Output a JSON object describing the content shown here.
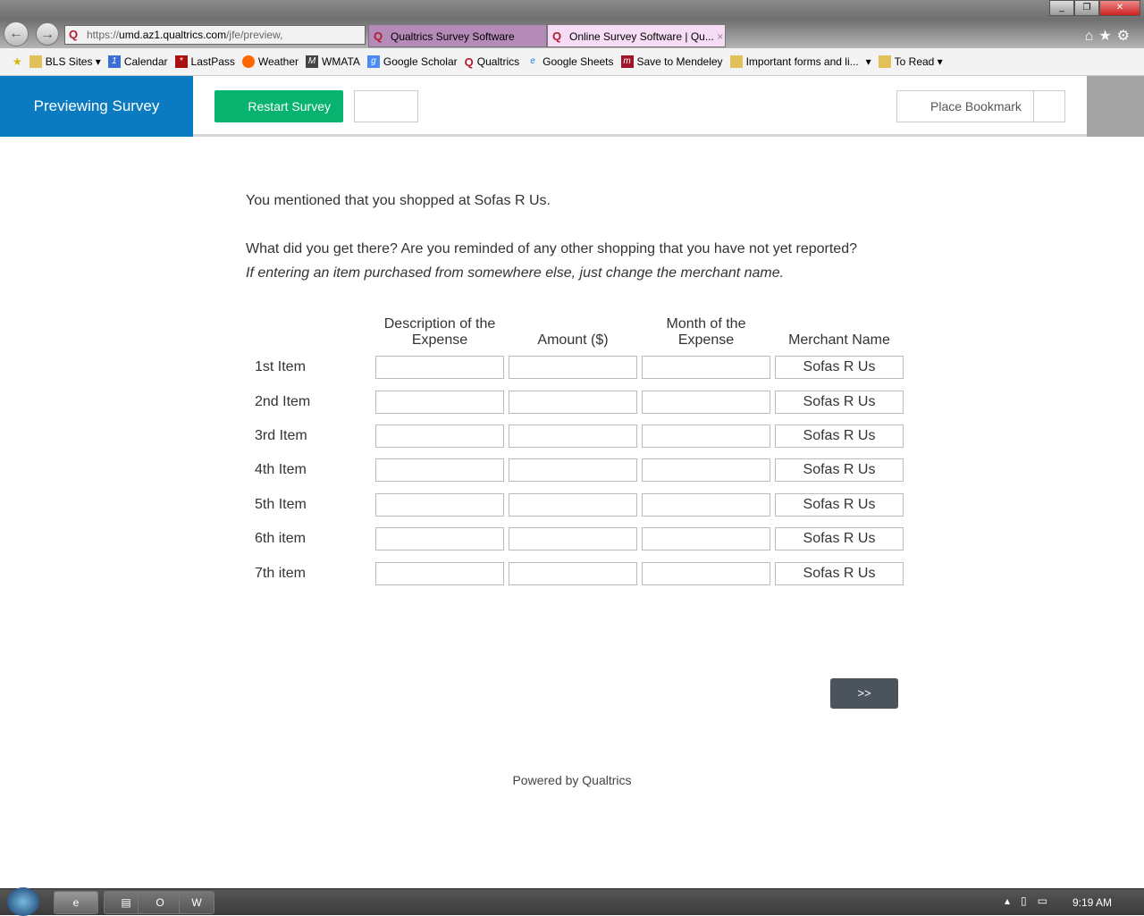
{
  "browser": {
    "url_prefix": "https://",
    "url_domain": "umd.az1.qualtrics.com",
    "url_path": "/jfe/preview,",
    "tabs": [
      {
        "label": "Qualtrics Survey Software"
      },
      {
        "label": "Online Survey Software | Qu..."
      }
    ],
    "tab_close": "×",
    "bookmarks": [
      {
        "label": "BLS Sites ▾",
        "icon": "folder-icon"
      },
      {
        "label": "Calendar",
        "icon": "calendar-icon"
      },
      {
        "label": "LastPass",
        "icon": "lastpass-icon"
      },
      {
        "label": "Weather",
        "icon": "weather-icon"
      },
      {
        "label": "WMATA",
        "icon": "wmata-icon"
      },
      {
        "label": "Google Scholar",
        "icon": "scholar-icon"
      },
      {
        "label": "Qualtrics",
        "icon": "qualtrics-icon"
      },
      {
        "label": "Google Sheets",
        "icon": "ie-page-icon"
      },
      {
        "label": "Save to Mendeley",
        "icon": "mendeley-icon"
      },
      {
        "label": "Important forms and li...",
        "icon": "folder-icon"
      },
      {
        "label": "▾",
        "icon": ""
      },
      {
        "label": "To Read ▾",
        "icon": "folder-icon"
      }
    ]
  },
  "header": {
    "preview": "Previewing Survey",
    "restart": "Restart Survey",
    "bookmark": "Place Bookmark"
  },
  "survey": {
    "intro": "You mentioned that you shopped at Sofas R Us.",
    "question": "What did you get there? Are you reminded of any other shopping that you have not yet reported?",
    "instruction": "If entering an item purchased from somewhere else, just change the merchant name.",
    "columns": [
      "Description of the Expense",
      "Amount ($)",
      "Month of the Expense",
      "Merchant Name"
    ],
    "rows": [
      {
        "label": "1st Item",
        "merchant": "Sofas R Us"
      },
      {
        "label": "2nd Item",
        "merchant": "Sofas R Us"
      },
      {
        "label": "3rd Item",
        "merchant": "Sofas R Us"
      },
      {
        "label": "4th Item",
        "merchant": "Sofas R Us"
      },
      {
        "label": "5th Item",
        "merchant": "Sofas R Us"
      },
      {
        "label": "6th item",
        "merchant": "Sofas R Us"
      },
      {
        "label": "7th item",
        "merchant": "Sofas R Us"
      }
    ],
    "next": ">>",
    "powered": "Powered by Qualtrics"
  },
  "taskbar": {
    "clock": "9:19 AM",
    "apps": [
      "e",
      "▤",
      "O",
      "W"
    ]
  }
}
